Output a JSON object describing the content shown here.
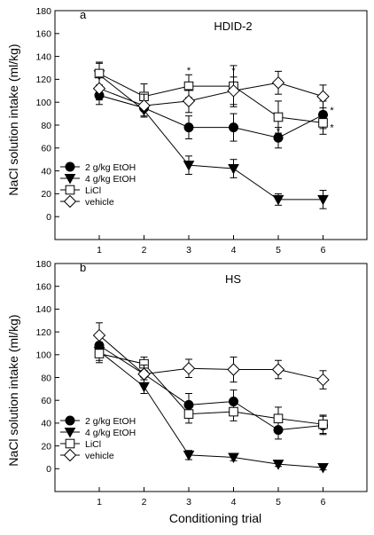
{
  "y_axis_label": "NaCl solution intake (ml/kg)",
  "x_axis_label": "Conditioning trial",
  "chart_data": [
    {
      "type": "line",
      "panel": "a",
      "title": "HDID-2",
      "x": [
        1,
        2,
        3,
        4,
        5,
        6
      ],
      "xticks": [
        "1",
        "2",
        "3",
        "4",
        "5",
        "6"
      ],
      "ylim": [
        -20,
        180
      ],
      "yticks": [
        0,
        20,
        40,
        60,
        80,
        100,
        120,
        140,
        160,
        180
      ],
      "legend_position": "bottom-left",
      "series": [
        {
          "name": "2 g/kg EtOH",
          "marker": "filled-circle",
          "values": [
            106,
            95,
            78,
            78,
            69,
            89
          ],
          "errors": [
            8,
            7,
            10,
            12,
            9,
            12
          ]
        },
        {
          "name": "4 g/kg EtOH",
          "marker": "filled-triangle-down",
          "values": [
            124,
            93,
            45,
            42,
            15,
            15
          ],
          "errors": [
            10,
            6,
            8,
            8,
            5,
            8
          ]
        },
        {
          "name": "LiCl",
          "marker": "open-square",
          "values": [
            125,
            105,
            114,
            114,
            87,
            82
          ],
          "errors": [
            10,
            11,
            10,
            18,
            14,
            10
          ]
        },
        {
          "name": "vehicle",
          "marker": "open-diamond",
          "values": [
            112,
            97,
            101,
            110,
            117,
            105
          ],
          "errors": [
            10,
            10,
            10,
            12,
            10,
            10
          ]
        }
      ],
      "annotations": [
        {
          "text": "*",
          "x": 3,
          "y": 128
        },
        {
          "text": "*",
          "x": 4,
          "y": 128
        },
        {
          "text": "*",
          "x": 5,
          "y": 75
        },
        {
          "text": "*",
          "x": 6,
          "y": 93
        },
        {
          "text": "*",
          "x": 6,
          "y": 78
        }
      ]
    },
    {
      "type": "line",
      "panel": "b",
      "title": "HS",
      "x": [
        1,
        2,
        3,
        4,
        5,
        6
      ],
      "xticks": [
        "1",
        "2",
        "3",
        "4",
        "5",
        "6"
      ],
      "ylim": [
        -20,
        180
      ],
      "yticks": [
        0,
        20,
        40,
        60,
        80,
        100,
        120,
        140,
        160,
        180
      ],
      "legend_position": "bottom-left",
      "series": [
        {
          "name": "2 g/kg EtOH",
          "marker": "filled-circle",
          "values": [
            108,
            83,
            56,
            59,
            34,
            38
          ],
          "errors": [
            8,
            8,
            10,
            10,
            8,
            8
          ]
        },
        {
          "name": "4 g/kg EtOH",
          "marker": "filled-triangle-down",
          "values": [
            103,
            72,
            12,
            10,
            4,
            1
          ],
          "errors": [
            8,
            6,
            4,
            3,
            2,
            2
          ]
        },
        {
          "name": "LiCl",
          "marker": "open-square",
          "values": [
            101,
            92,
            48,
            50,
            44,
            39
          ],
          "errors": [
            8,
            6,
            8,
            8,
            10,
            8
          ]
        },
        {
          "name": "vehicle",
          "marker": "open-diamond",
          "values": [
            117,
            83,
            88,
            87,
            87,
            78
          ],
          "errors": [
            11,
            8,
            8,
            11,
            8,
            8
          ]
        }
      ],
      "annotations": []
    }
  ]
}
